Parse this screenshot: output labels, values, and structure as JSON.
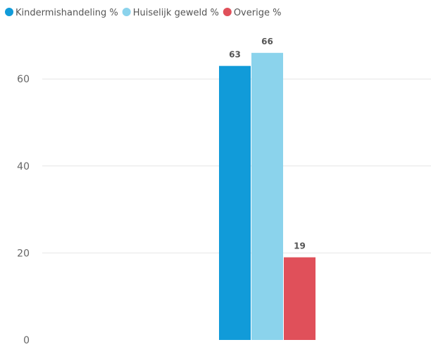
{
  "chart_data": {
    "type": "bar",
    "categories": [
      ""
    ],
    "series": [
      {
        "name": "Kindermishandeling %",
        "values": [
          63
        ],
        "color": "#119BD9"
      },
      {
        "name": "Huiselijk geweld %",
        "values": [
          66
        ],
        "color": "#8BD3EC"
      },
      {
        "name": "Overige %",
        "values": [
          19
        ],
        "color": "#E0505A"
      }
    ],
    "y_ticks": [
      0,
      20,
      40,
      60
    ],
    "y_tick_labels": [
      "0",
      "20",
      "40",
      "60"
    ],
    "data_labels": [
      "63",
      "66",
      "19"
    ],
    "ylim": [
      0,
      79
    ],
    "grid": true,
    "legend_position": "top-left"
  }
}
